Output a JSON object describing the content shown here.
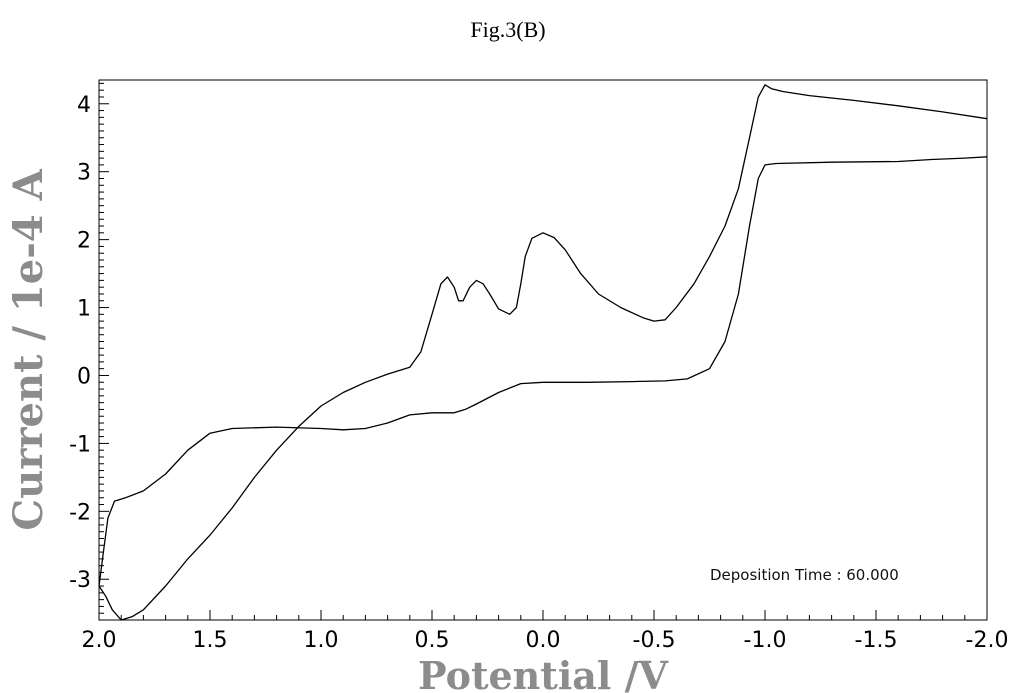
{
  "figure_label": "Fig.3(B)",
  "chart_data": {
    "type": "line",
    "title": "Fig.3(B)",
    "xlabel": "Potential /V",
    "ylabel": "Current / 1e-4 A",
    "xlim": [
      2.0,
      -2.0
    ],
    "ylim": [
      -3.6,
      4.35
    ],
    "x_reversed": true,
    "grid": false,
    "x_ticks": [
      2.0,
      1.5,
      1.0,
      0.5,
      0.0,
      -0.5,
      -1.0,
      -1.5,
      -2.0
    ],
    "x_tick_labels": [
      "2.0",
      "1.5",
      "1.0",
      "0.5",
      "0.0",
      "-0.5",
      "-1.0",
      "-1.5",
      "-2.0"
    ],
    "y_ticks": [
      4,
      3,
      2,
      1,
      0,
      -1,
      -2,
      -3
    ],
    "y_tick_labels": [
      "4",
      "3",
      "2",
      "1",
      "0",
      "-1",
      "-2",
      "-3"
    ],
    "annotation": "Deposition Time : 60.000",
    "series": [
      {
        "curve": "upper branch",
        "points": [
          [
            -2.0,
            3.78
          ],
          [
            -1.8,
            3.88
          ],
          [
            -1.6,
            3.97
          ],
          [
            -1.4,
            4.05
          ],
          [
            -1.2,
            4.12
          ],
          [
            -1.08,
            4.18
          ],
          [
            -1.03,
            4.22
          ],
          [
            -1.0,
            4.28
          ],
          [
            -0.97,
            4.1
          ],
          [
            -0.93,
            3.5
          ],
          [
            -0.88,
            2.75
          ],
          [
            -0.82,
            2.2
          ],
          [
            -0.75,
            1.75
          ],
          [
            -0.68,
            1.35
          ],
          [
            -0.6,
            1.0
          ],
          [
            -0.55,
            0.82
          ],
          [
            -0.5,
            0.8
          ],
          [
            -0.45,
            0.85
          ],
          [
            -0.35,
            1.0
          ],
          [
            -0.25,
            1.2
          ],
          [
            -0.17,
            1.5
          ],
          [
            -0.1,
            1.85
          ],
          [
            -0.05,
            2.03
          ],
          [
            0.0,
            2.1
          ],
          [
            0.05,
            2.02
          ],
          [
            0.08,
            1.75
          ],
          [
            0.1,
            1.35
          ],
          [
            0.12,
            1.0
          ],
          [
            0.15,
            0.9
          ],
          [
            0.2,
            0.98
          ],
          [
            0.24,
            1.2
          ],
          [
            0.27,
            1.35
          ],
          [
            0.3,
            1.4
          ],
          [
            0.33,
            1.3
          ],
          [
            0.36,
            1.1
          ],
          [
            0.38,
            1.1
          ],
          [
            0.4,
            1.3
          ],
          [
            0.43,
            1.45
          ],
          [
            0.46,
            1.35
          ],
          [
            0.5,
            0.9
          ],
          [
            0.55,
            0.35
          ],
          [
            0.6,
            0.12
          ],
          [
            0.7,
            0.02
          ],
          [
            0.8,
            -0.1
          ],
          [
            0.9,
            -0.25
          ],
          [
            1.0,
            -0.45
          ],
          [
            1.1,
            -0.75
          ],
          [
            1.2,
            -1.1
          ],
          [
            1.3,
            -1.5
          ],
          [
            1.4,
            -1.95
          ],
          [
            1.5,
            -2.35
          ],
          [
            1.6,
            -2.7
          ],
          [
            1.7,
            -3.1
          ],
          [
            1.8,
            -3.45
          ],
          [
            1.85,
            -3.55
          ],
          [
            1.9,
            -3.6
          ],
          [
            1.94,
            -3.45
          ],
          [
            1.97,
            -3.25
          ],
          [
            2.0,
            -3.1
          ]
        ]
      },
      {
        "curve": "lower branch",
        "points": [
          [
            2.0,
            -3.1
          ],
          [
            1.98,
            -2.6
          ],
          [
            1.96,
            -2.1
          ],
          [
            1.93,
            -1.85
          ],
          [
            1.88,
            -1.8
          ],
          [
            1.8,
            -1.7
          ],
          [
            1.7,
            -1.45
          ],
          [
            1.6,
            -1.1
          ],
          [
            1.5,
            -0.85
          ],
          [
            1.4,
            -0.78
          ],
          [
            1.2,
            -0.76
          ],
          [
            1.0,
            -0.78
          ],
          [
            0.9,
            -0.8
          ],
          [
            0.8,
            -0.78
          ],
          [
            0.7,
            -0.7
          ],
          [
            0.6,
            -0.58
          ],
          [
            0.5,
            -0.55
          ],
          [
            0.4,
            -0.55
          ],
          [
            0.35,
            -0.5
          ],
          [
            0.3,
            -0.42
          ],
          [
            0.2,
            -0.25
          ],
          [
            0.1,
            -0.12
          ],
          [
            0.0,
            -0.1
          ],
          [
            -0.2,
            -0.1
          ],
          [
            -0.4,
            -0.09
          ],
          [
            -0.55,
            -0.08
          ],
          [
            -0.65,
            -0.05
          ],
          [
            -0.75,
            0.1
          ],
          [
            -0.82,
            0.5
          ],
          [
            -0.88,
            1.2
          ],
          [
            -0.93,
            2.2
          ],
          [
            -0.97,
            2.9
          ],
          [
            -1.0,
            3.1
          ],
          [
            -1.05,
            3.12
          ],
          [
            -1.3,
            3.14
          ],
          [
            -1.6,
            3.15
          ],
          [
            -1.75,
            3.18
          ],
          [
            -1.9,
            3.2
          ],
          [
            -2.0,
            3.22
          ]
        ]
      }
    ]
  }
}
